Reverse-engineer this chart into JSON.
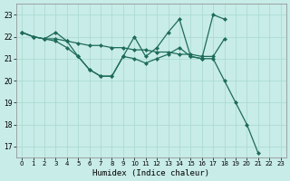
{
  "xlabel": "Humidex (Indice chaleur)",
  "bg_color": "#c8ece8",
  "grid_color": "#a8d8d0",
  "line_color": "#1e6b5a",
  "xlim": [
    -0.5,
    23.5
  ],
  "ylim": [
    16.5,
    23.5
  ],
  "yticks": [
    17,
    18,
    19,
    20,
    21,
    22,
    23
  ],
  "xticks": [
    0,
    1,
    2,
    3,
    4,
    5,
    6,
    7,
    8,
    9,
    10,
    11,
    12,
    13,
    14,
    15,
    16,
    17,
    18,
    19,
    20,
    21,
    22,
    23
  ],
  "line_flat_x": [
    0,
    1,
    2,
    3,
    4,
    5,
    6,
    7,
    8,
    9,
    10,
    11,
    12,
    13,
    14,
    15,
    16,
    17,
    18
  ],
  "line_flat_y": [
    22.2,
    22.0,
    21.9,
    21.9,
    21.8,
    21.7,
    21.6,
    21.6,
    21.5,
    21.5,
    21.4,
    21.4,
    21.3,
    21.3,
    21.2,
    21.2,
    21.1,
    21.1,
    21.9
  ],
  "line_zigzag_x": [
    0,
    1,
    2,
    3,
    4,
    5,
    6,
    7,
    8,
    9,
    10,
    11,
    12,
    13,
    14,
    15,
    16,
    17,
    18
  ],
  "line_zigzag_y": [
    22.2,
    22.0,
    21.9,
    22.2,
    21.8,
    21.1,
    20.5,
    20.2,
    20.2,
    21.1,
    22.0,
    21.1,
    21.5,
    22.2,
    22.8,
    21.1,
    21.0,
    23.0,
    22.8
  ],
  "line_steep_x": [
    0,
    1,
    2,
    3,
    4,
    5,
    6,
    7,
    8,
    9,
    10,
    11,
    12,
    13,
    14,
    15,
    16,
    17,
    18,
    19,
    20,
    21,
    22,
    23
  ],
  "line_steep_y": [
    22.2,
    22.0,
    21.9,
    21.8,
    21.5,
    21.1,
    20.5,
    20.2,
    20.2,
    21.1,
    21.0,
    20.8,
    21.0,
    21.2,
    21.5,
    21.1,
    21.0,
    21.0,
    20.0,
    19.0,
    18.0,
    16.7,
    null,
    null
  ]
}
